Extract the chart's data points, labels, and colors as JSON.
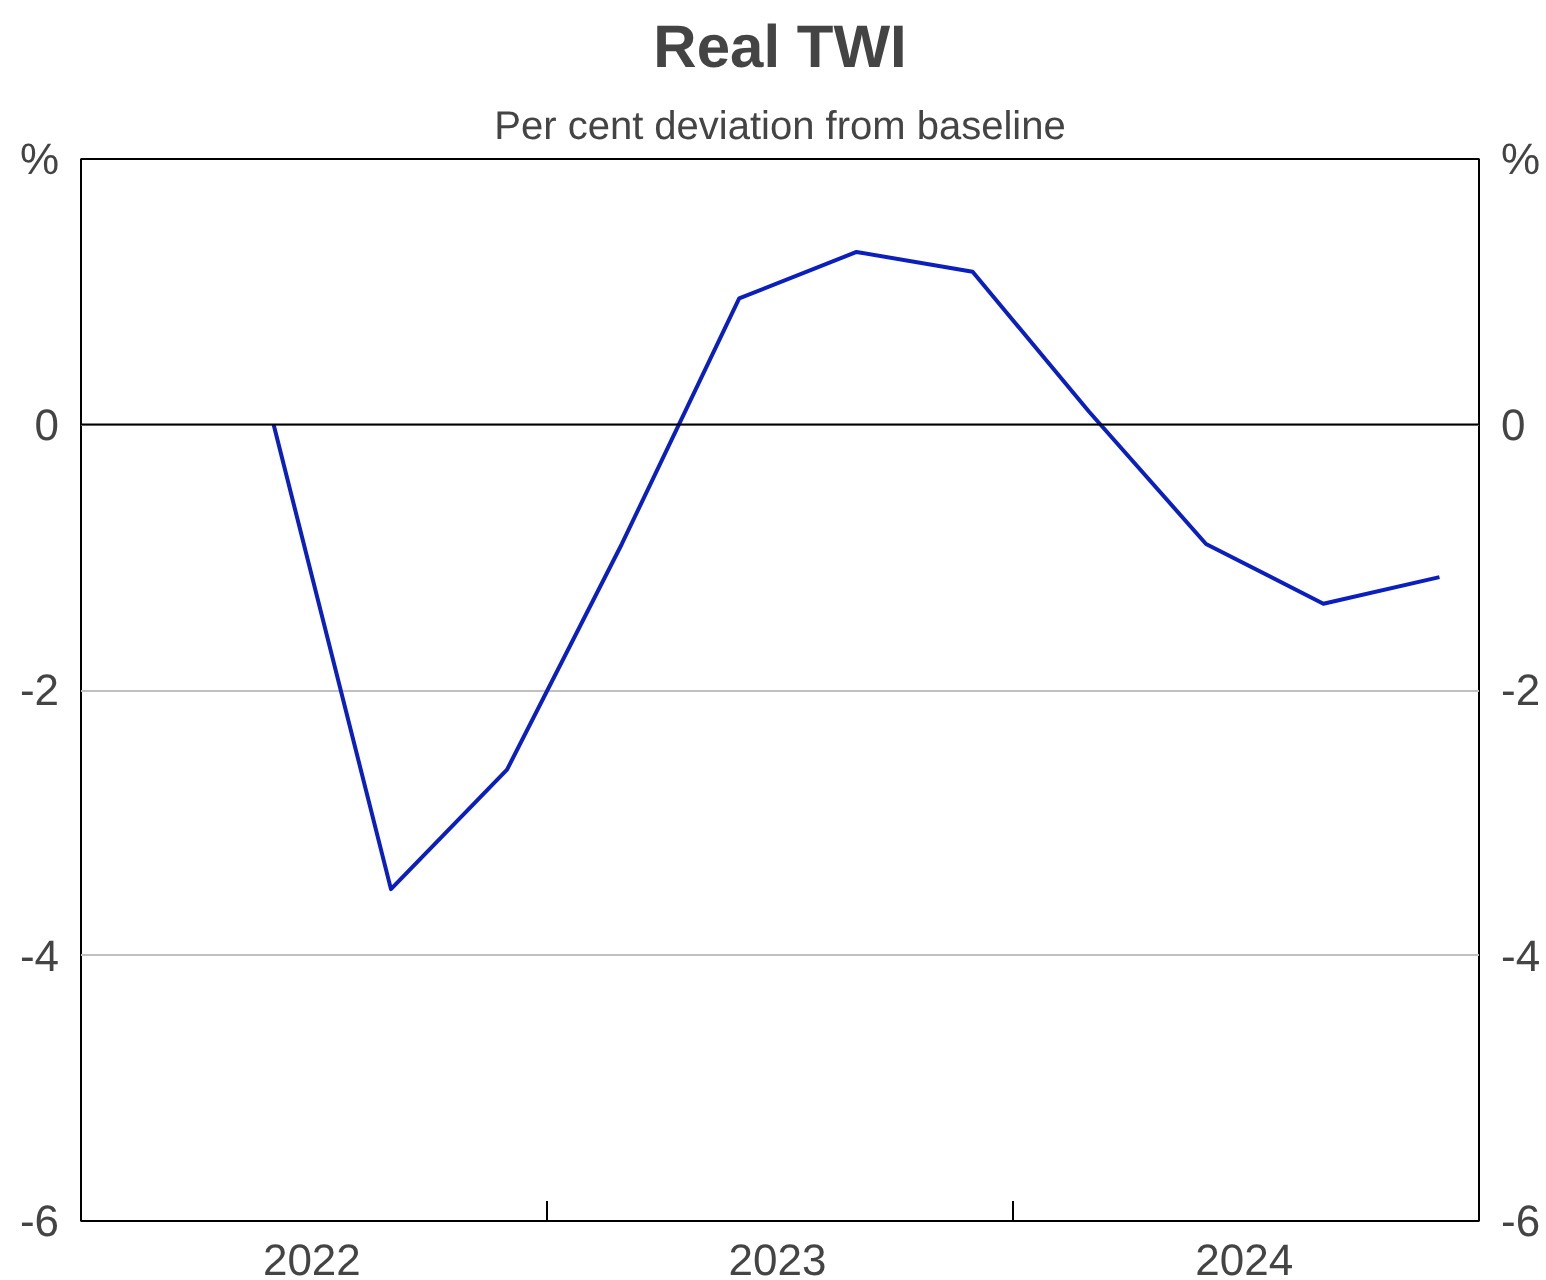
{
  "chart_data": {
    "type": "line",
    "title": "Real TWI",
    "subtitle": "Per cent deviation from baseline",
    "x": [
      "2022-06",
      "2022-09",
      "2022-12",
      "2023-03",
      "2023-06",
      "2023-09",
      "2023-12",
      "2024-03",
      "2024-06",
      "2024-09",
      "2024-12"
    ],
    "series": [
      {
        "color": "#0a1fbe",
        "values": [
          0,
          -3.5,
          -2.6,
          -0.9,
          0.95,
          1.3,
          1.15,
          0.1,
          -0.9,
          -1.35,
          -1.15
        ]
      }
    ],
    "xlim": [
      "2022-01",
      "2025-01"
    ],
    "xticks": [
      {
        "value": "2022-01",
        "label": null
      },
      {
        "value": "2022-07",
        "label": "2022"
      },
      {
        "value": "2023-01",
        "label": null
      },
      {
        "value": "2023-07",
        "label": "2023"
      },
      {
        "value": "2024-01",
        "label": null
      },
      {
        "value": "2024-07",
        "label": "2024"
      },
      {
        "value": "2025-01",
        "label": null
      }
    ],
    "ylim": [
      -6,
      2
    ],
    "yticks": [
      -6,
      -4,
      -2,
      0,
      {
        "value": 2,
        "label": "%"
      }
    ],
    "y2lim": [
      -6,
      2
    ],
    "y2ticks": [
      -6,
      -4,
      -2,
      0,
      {
        "value": 2,
        "label": "%"
      }
    ],
    "ref_lines": [
      {
        "axis": "y",
        "value": 0,
        "color": "#000000"
      }
    ],
    "grid": "y",
    "line_style": "solid"
  }
}
